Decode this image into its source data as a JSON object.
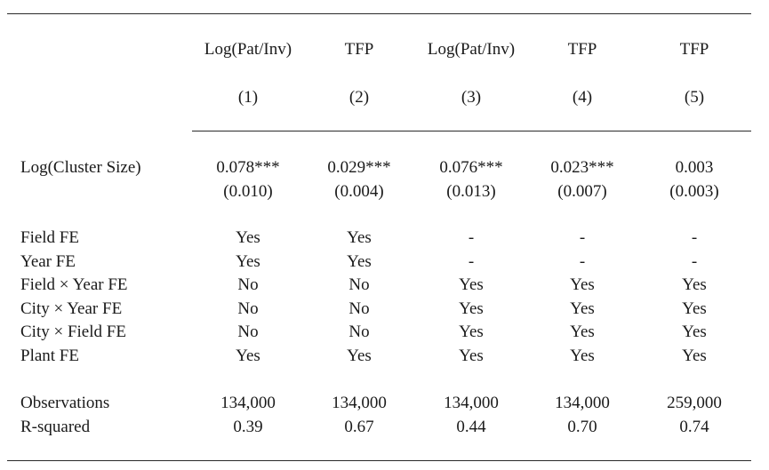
{
  "columns": [
    {
      "header": "Log(Pat/Inv)",
      "number": "(1)"
    },
    {
      "header": "TFP",
      "number": "(2)"
    },
    {
      "header": "Log(Pat/Inv)",
      "number": "(3)"
    },
    {
      "header": "TFP",
      "number": "(4)"
    },
    {
      "header": "TFP",
      "number": "(5)"
    }
  ],
  "main_row": {
    "label": "Log(Cluster Size)",
    "coefficients": [
      "0.078***",
      "0.029***",
      "0.076***",
      "0.023***",
      "0.003"
    ],
    "std_errors": [
      "(0.010)",
      "(0.004)",
      "(0.013)",
      "(0.007)",
      "(0.003)"
    ]
  },
  "fixed_effects": [
    {
      "label": "Field FE",
      "values": [
        "Yes",
        "Yes",
        "-",
        "-",
        "-"
      ]
    },
    {
      "label": "Year FE",
      "values": [
        "Yes",
        "Yes",
        "-",
        "-",
        "-"
      ]
    },
    {
      "label": "Field × Year FE",
      "values": [
        "No",
        "No",
        "Yes",
        "Yes",
        "Yes"
      ]
    },
    {
      "label": "City × Year FE",
      "values": [
        "No",
        "No",
        "Yes",
        "Yes",
        "Yes"
      ]
    },
    {
      "label": "City × Field FE",
      "values": [
        "No",
        "No",
        "Yes",
        "Yes",
        "Yes"
      ]
    },
    {
      "label": "Plant FE",
      "values": [
        "Yes",
        "Yes",
        "Yes",
        "Yes",
        "Yes"
      ]
    }
  ],
  "stats": [
    {
      "label": "Observations",
      "values": [
        "134,000",
        "134,000",
        "134,000",
        "134,000",
        "259,000"
      ]
    },
    {
      "label": "R-squared",
      "values": [
        "0.39",
        "0.67",
        "0.44",
        "0.70",
        "0.74"
      ]
    }
  ]
}
